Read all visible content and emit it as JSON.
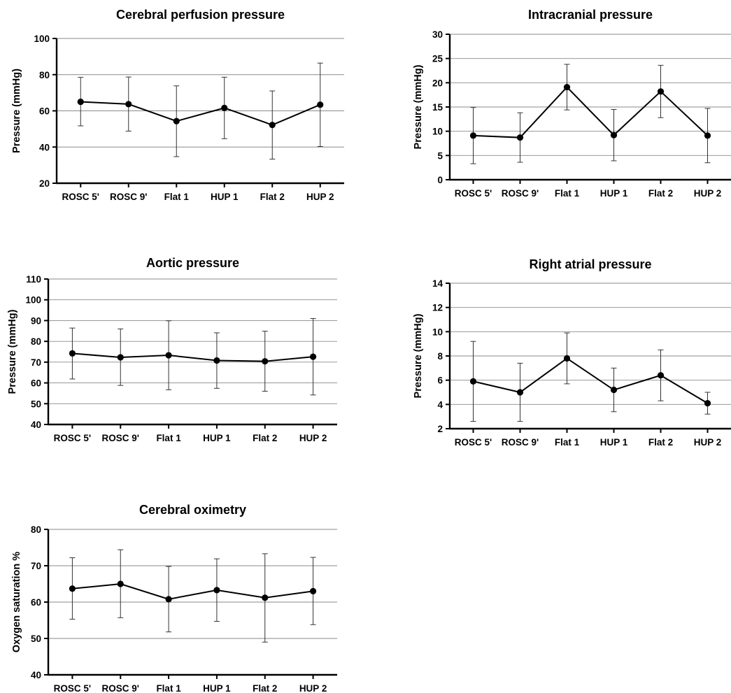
{
  "chart_data": [
    {
      "type": "line",
      "title": "Cerebral perfusion pressure",
      "ylabel": "Pressure (mmHg)",
      "categories": [
        "ROSC 5'",
        "ROSC 9'",
        "Flat 1",
        "HUP 1",
        "Flat 2",
        "HUP 2"
      ],
      "values": [
        65,
        63.7,
        54.3,
        61.6,
        52.2,
        63.4
      ],
      "error_low": [
        51.7,
        48.8,
        34.7,
        44.6,
        33.3,
        40.3
      ],
      "error_high": [
        78.5,
        78.7,
        73.8,
        78.6,
        71,
        86.4
      ],
      "ylim": [
        20,
        100
      ],
      "yticks": [
        "20",
        "40",
        "60",
        "80",
        "100"
      ],
      "grid": true
    },
    {
      "type": "line",
      "title": "Intracranial pressure",
      "ylabel": "Pressure (mmHg)",
      "categories": [
        "ROSC 5'",
        "ROSC 9'",
        "Flat 1",
        "HUP 1",
        "Flat 2",
        "HUP 2"
      ],
      "values": [
        9.1,
        8.7,
        19.1,
        9.2,
        18.2,
        9.1
      ],
      "error_low": [
        3.3,
        3.6,
        14.4,
        3.9,
        12.8,
        3.5
      ],
      "error_high": [
        14.9,
        13.8,
        23.8,
        14.5,
        23.6,
        14.7
      ],
      "ylim": [
        0,
        30
      ],
      "yticks": [
        "0",
        "5",
        "10",
        "15",
        "20",
        "25",
        "30"
      ],
      "grid": true
    },
    {
      "type": "line",
      "title": "Aortic pressure",
      "ylabel": "Pressure (mmHg)",
      "categories": [
        "ROSC 5'",
        "ROSC 9'",
        "Flat 1",
        "HUP 1",
        "Flat 2",
        "HUP 2"
      ],
      "values": [
        74.2,
        72.3,
        73.3,
        70.8,
        70.4,
        72.6
      ],
      "error_low": [
        61.9,
        58.8,
        56.7,
        57.4,
        56,
        54.2
      ],
      "error_high": [
        86.4,
        86,
        89.9,
        84.1,
        84.9,
        91
      ],
      "ylim": [
        40,
        110
      ],
      "yticks": [
        "40",
        "50",
        "60",
        "70",
        "80",
        "90",
        "100",
        "110"
      ],
      "grid": true
    },
    {
      "type": "line",
      "title": "Right atrial pressure",
      "ylabel": "Pressure (mmHg)",
      "categories": [
        "ROSC 5'",
        "ROSC 9'",
        "Flat 1",
        "HUP 1",
        "Flat 2",
        "HUP 2"
      ],
      "values": [
        5.9,
        5,
        7.8,
        5.2,
        6.4,
        4.1
      ],
      "error_low": [
        2.6,
        2.6,
        5.7,
        3.4,
        4.3,
        3.2
      ],
      "error_high": [
        9.2,
        7.4,
        9.9,
        7,
        8.5,
        5
      ],
      "ylim": [
        2,
        14
      ],
      "yticks": [
        "2",
        "4",
        "6",
        "8",
        "10",
        "12",
        "14"
      ],
      "grid": true
    },
    {
      "type": "line",
      "title": "Cerebral oximetry",
      "ylabel": "Oxygen saturation %",
      "categories": [
        "ROSC 5'",
        "ROSC 9'",
        "Flat 1",
        "HUP 1",
        "Flat 2",
        "HUP 2"
      ],
      "values": [
        63.7,
        65,
        60.8,
        63.3,
        61.2,
        63
      ],
      "error_low": [
        55.3,
        55.7,
        51.8,
        54.7,
        49,
        53.8
      ],
      "error_high": [
        72.2,
        74.4,
        69.8,
        71.9,
        73.3,
        72.3
      ],
      "ylim": [
        40,
        80
      ],
      "yticks": [
        "40",
        "50",
        "60",
        "70",
        "80"
      ],
      "grid": true
    }
  ]
}
